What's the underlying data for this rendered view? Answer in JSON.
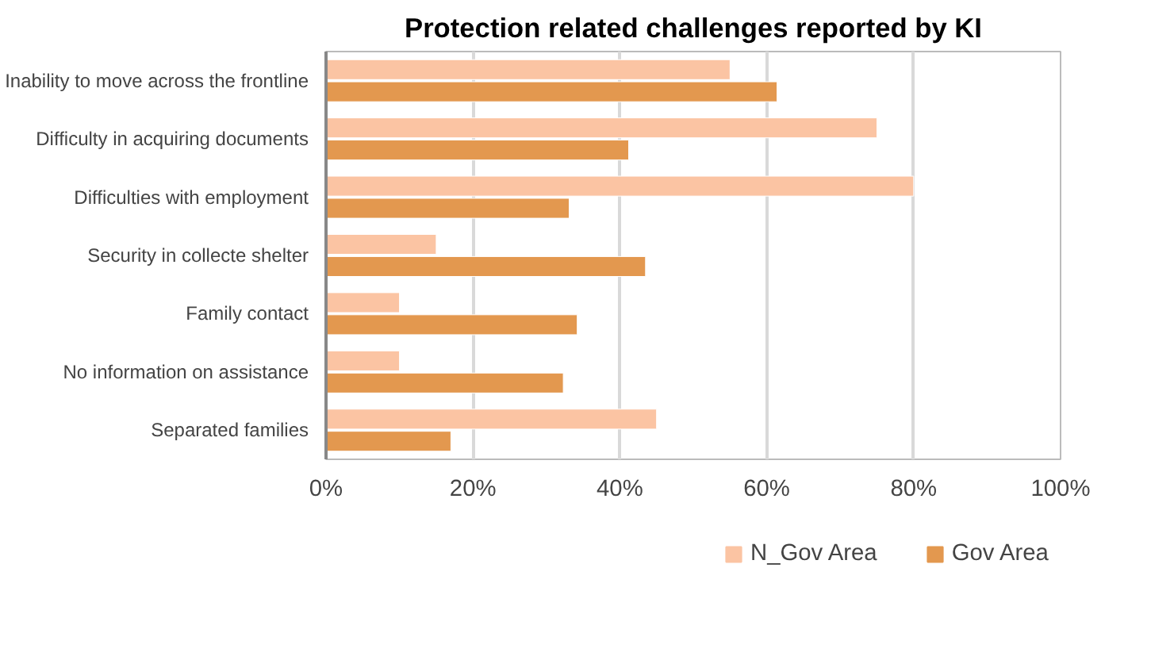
{
  "chart_data": {
    "type": "bar",
    "orientation": "horizontal",
    "title": "Protection related challenges reported by KI",
    "categories": [
      "Inability to move across the frontline",
      "Difficulty in acquiring documents",
      "Difficulties with employment",
      "Security in collecte shelter",
      "Family contact",
      "No information on assistance",
      "Separated families"
    ],
    "series": [
      {
        "name": "N_Gov Area",
        "color": "#fbc4a3",
        "values": [
          55,
          75,
          80,
          15,
          10,
          10,
          45
        ]
      },
      {
        "name": "Gov Area",
        "color": "#e3984f",
        "values": [
          61.4,
          41.2,
          33.1,
          43.5,
          34.2,
          32.3,
          17
        ]
      }
    ],
    "xlim": [
      0,
      100
    ],
    "xticks": [
      {
        "value": 0,
        "label": "0%"
      },
      {
        "value": 20,
        "label": "20%"
      },
      {
        "value": 40,
        "label": "40%"
      },
      {
        "value": 60,
        "label": "60%"
      },
      {
        "value": 80,
        "label": "80%"
      },
      {
        "value": 100,
        "label": "100%"
      }
    ],
    "grid": "x",
    "legend": "bottom"
  }
}
